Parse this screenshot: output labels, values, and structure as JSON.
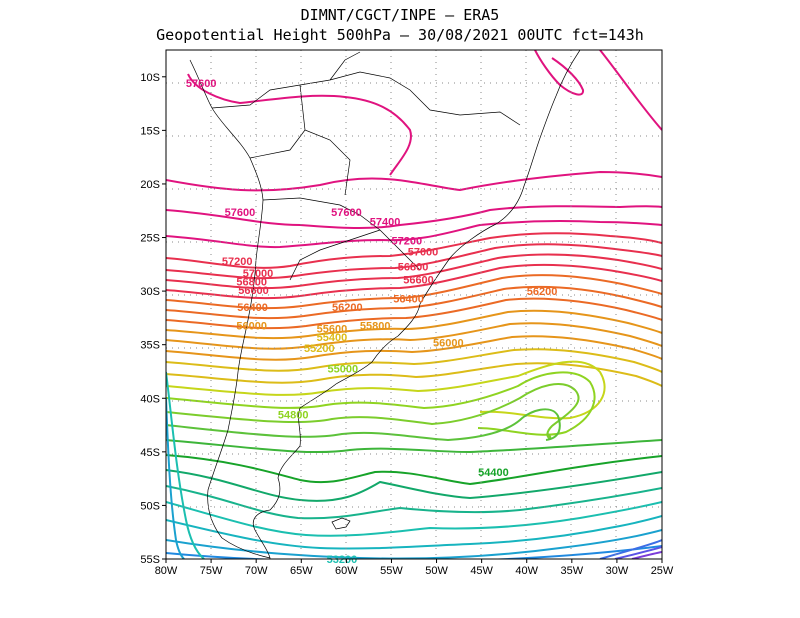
{
  "header": {
    "line1": "DIMNT/CGCT/INPE –  ERA5",
    "line2": "Geopotential Height 500hPa –  30/08/2021 00UTC fct=143h"
  },
  "map": {
    "region": "South America",
    "lon_range": [
      -80,
      -25
    ],
    "lat_range": [
      -55,
      -7.5
    ],
    "lon_ticks": [
      "80W",
      "75W",
      "70W",
      "65W",
      "60W",
      "55W",
      "50W",
      "45W",
      "40W",
      "35W",
      "30W",
      "25W"
    ],
    "lat_ticks": [
      "10S",
      "15S",
      "20S",
      "25S",
      "30S",
      "35S",
      "40S",
      "45S",
      "50S",
      "55S"
    ],
    "contour_labels": [
      {
        "text": "57600",
        "lon": -76.1,
        "lat": -10.6,
        "color": "#e0137f"
      },
      {
        "text": "57600",
        "lon": -71.8,
        "lat": -22.6,
        "color": "#e0137f"
      },
      {
        "text": "57600",
        "lon": -60.0,
        "lat": -22.6,
        "color": "#e0137f"
      },
      {
        "text": "57400",
        "lon": -55.7,
        "lat": -23.5,
        "color": "#e0137f"
      },
      {
        "text": "57200",
        "lon": -53.3,
        "lat": -25.3,
        "color": "#e0137f"
      },
      {
        "text": "57200",
        "lon": -72.1,
        "lat": -27.2,
        "color": "#e8304e"
      },
      {
        "text": "57000",
        "lon": -51.5,
        "lat": -26.3,
        "color": "#e8304e"
      },
      {
        "text": "57000",
        "lon": -69.8,
        "lat": -28.3,
        "color": "#e8304e"
      },
      {
        "text": "56800",
        "lon": -70.5,
        "lat": -29.1,
        "color": "#e8304e"
      },
      {
        "text": "56800",
        "lon": -52.6,
        "lat": -27.7,
        "color": "#e8304e"
      },
      {
        "text": "56600",
        "lon": -70.3,
        "lat": -29.9,
        "color": "#e8304e"
      },
      {
        "text": "56600",
        "lon": -52.0,
        "lat": -28.9,
        "color": "#e8304e"
      },
      {
        "text": "56400",
        "lon": -53.1,
        "lat": -30.7,
        "color": "#eb6a25"
      },
      {
        "text": "56400",
        "lon": -70.4,
        "lat": -31.5,
        "color": "#eb6a25"
      },
      {
        "text": "56200",
        "lon": -59.9,
        "lat": -31.5,
        "color": "#eb6a25"
      },
      {
        "text": "56200",
        "lon": -38.3,
        "lat": -30.0,
        "color": "#eb6a25"
      },
      {
        "text": "56000",
        "lon": -70.5,
        "lat": -33.2,
        "color": "#e6951a"
      },
      {
        "text": "56000",
        "lon": -48.7,
        "lat": -34.8,
        "color": "#e6951a"
      },
      {
        "text": "55800",
        "lon": -56.8,
        "lat": -33.2,
        "color": "#e6951a"
      },
      {
        "text": "55600",
        "lon": -61.6,
        "lat": -33.5,
        "color": "#e6951a"
      },
      {
        "text": "55400",
        "lon": -61.6,
        "lat": -34.3,
        "color": "#dcbc18"
      },
      {
        "text": "55200",
        "lon": -63.0,
        "lat": -35.3,
        "color": "#dcbc18"
      },
      {
        "text": "55000",
        "lon": -60.4,
        "lat": -37.2,
        "color": "#8fd421"
      },
      {
        "text": "54800",
        "lon": -65.9,
        "lat": -41.5,
        "color": "#8fd421"
      },
      {
        "text": "54400",
        "lon": -43.7,
        "lat": -46.9,
        "color": "#17a329"
      },
      {
        "text": "53200",
        "lon": -60.5,
        "lat": -55.0,
        "color": "#1bbfb0"
      }
    ]
  }
}
